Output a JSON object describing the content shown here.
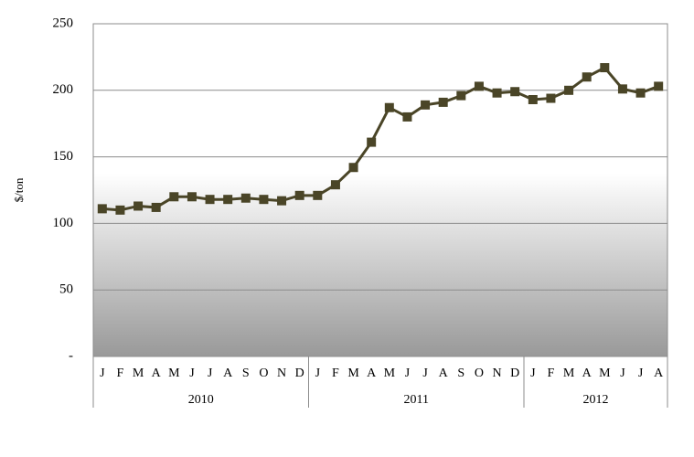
{
  "chart_data": {
    "type": "line",
    "y_label": "$/ton",
    "categories": [
      "J",
      "F",
      "M",
      "A",
      "M",
      "J",
      "J",
      "A",
      "S",
      "O",
      "N",
      "D",
      "J",
      "F",
      "M",
      "A",
      "M",
      "J",
      "J",
      "A",
      "S",
      "O",
      "N",
      "D",
      "J",
      "F",
      "M",
      "A",
      "M",
      "J",
      "J",
      "A"
    ],
    "groups": [
      {
        "label": "2010",
        "size": 12
      },
      {
        "label": "2011",
        "size": 12
      },
      {
        "label": "2012",
        "size": 8
      }
    ],
    "values": [
      111,
      110,
      113,
      112,
      120,
      120,
      118,
      118,
      119,
      118,
      117,
      121,
      121,
      129,
      142,
      161,
      187,
      180,
      189,
      191,
      196,
      203,
      198,
      199,
      193,
      194,
      200,
      210,
      217,
      201,
      198,
      203
    ],
    "color": "#4a4527",
    "ylim": [
      0,
      250
    ],
    "yticks": [
      {
        "value": 0,
        "label": "-"
      },
      50,
      100,
      150,
      200,
      250
    ],
    "grid": true
  }
}
